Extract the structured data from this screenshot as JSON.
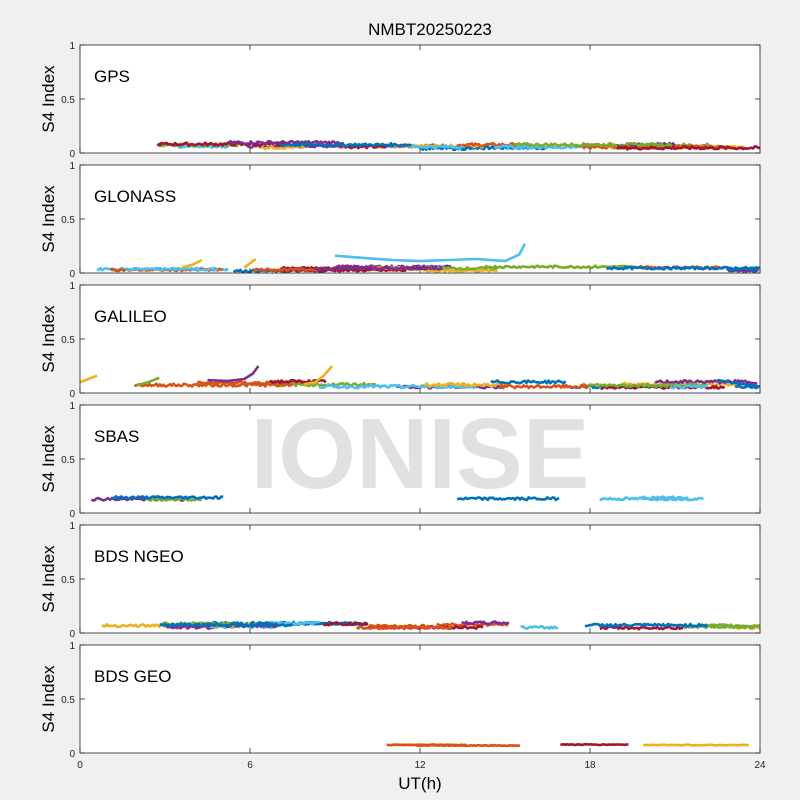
{
  "figure": {
    "title": "NMBT20250223",
    "xlabel": "UT(h)",
    "watermark": "IONISE",
    "background_color": "#f0f0f0",
    "axes_color": "#ffffff",
    "watermark_color": "#dcdcdc"
  },
  "chart_data": [
    {
      "type": "line",
      "panel_label": "GPS",
      "ylabel": "S4 Index",
      "xlim": [
        0,
        24
      ],
      "ylim": [
        0,
        1
      ],
      "xticks": [
        0,
        6,
        12,
        18,
        24
      ],
      "yticks": [
        0,
        0.5,
        1
      ],
      "show_xticklabels": false,
      "base": 0.07,
      "noise": 0.04,
      "tracks": 22,
      "spikes": [],
      "colors": [
        "#0072bd",
        "#d95319",
        "#edb120",
        "#7e2f8e",
        "#77ac30",
        "#4dbeee",
        "#a2142f"
      ]
    },
    {
      "type": "line",
      "panel_label": "GLONASS",
      "ylabel": "S4 Index",
      "xlim": [
        0,
        24
      ],
      "ylim": [
        0,
        1
      ],
      "xticks": [
        0,
        6,
        12,
        18,
        24
      ],
      "yticks": [
        0,
        0.5,
        1
      ],
      "show_xticklabels": false,
      "base": 0.04,
      "noise": 0.03,
      "tracks": 18,
      "spikes": [
        {
          "x": [
            9.0,
            10.0,
            11.0,
            12.0,
            13.0,
            14.0,
            15.0,
            15.5,
            15.7
          ],
          "y": [
            0.16,
            0.14,
            0.12,
            0.11,
            0.12,
            0.13,
            0.11,
            0.17,
            0.27
          ],
          "color": "#4dbeee"
        },
        {
          "x": [
            3.6,
            4.0,
            4.3
          ],
          "y": [
            0.05,
            0.08,
            0.12
          ],
          "color": "#edb120"
        },
        {
          "x": [
            5.8,
            6.0,
            6.2
          ],
          "y": [
            0.05,
            0.09,
            0.13
          ],
          "color": "#edb120"
        }
      ],
      "colors": [
        "#0072bd",
        "#d95319",
        "#edb120",
        "#7e2f8e",
        "#77ac30",
        "#4dbeee",
        "#a2142f"
      ]
    },
    {
      "type": "line",
      "panel_label": "GALILEO",
      "ylabel": "S4 Index",
      "xlim": [
        0,
        24
      ],
      "ylim": [
        0,
        1
      ],
      "xticks": [
        0,
        6,
        12,
        18,
        24
      ],
      "yticks": [
        0,
        0.5,
        1
      ],
      "show_xticklabels": false,
      "base": 0.08,
      "noise": 0.04,
      "tracks": 16,
      "spikes": [
        {
          "x": [
            4.5,
            5.2,
            5.8,
            6.1,
            6.3
          ],
          "y": [
            0.12,
            0.11,
            0.13,
            0.18,
            0.25
          ],
          "color": "#7e2f8e"
        },
        {
          "x": [
            7.9,
            8.3,
            8.6,
            8.9
          ],
          "y": [
            0.08,
            0.1,
            0.16,
            0.25
          ],
          "color": "#edb120"
        },
        {
          "x": [
            0.0,
            0.3,
            0.6
          ],
          "y": [
            0.1,
            0.13,
            0.16
          ],
          "color": "#edb120"
        },
        {
          "x": [
            2.0,
            2.4,
            2.8
          ],
          "y": [
            0.07,
            0.1,
            0.14
          ],
          "color": "#77ac30"
        },
        {
          "x": [
            22.5,
            23.2,
            24.0
          ],
          "y": [
            0.12,
            0.09,
            0.06
          ],
          "color": "#0072bd"
        }
      ],
      "colors": [
        "#0072bd",
        "#d95319",
        "#edb120",
        "#7e2f8e",
        "#77ac30",
        "#4dbeee",
        "#a2142f"
      ]
    },
    {
      "type": "line",
      "panel_label": "SBAS",
      "ylabel": "S4 Index",
      "xlim": [
        0,
        24
      ],
      "ylim": [
        0,
        1
      ],
      "xticks": [
        0,
        6,
        12,
        18,
        24
      ],
      "yticks": [
        0,
        0.5,
        1
      ],
      "show_xticklabels": false,
      "base": 0.14,
      "noise": 0.035,
      "tracks": 6,
      "spikes": [],
      "colors": [
        "#0072bd",
        "#7e2f8e",
        "#4dbeee",
        "#77ac30",
        "#0072bd",
        "#4dbeee"
      ]
    },
    {
      "type": "line",
      "panel_label": "BDS NGEO",
      "ylabel": "S4 Index",
      "xlim": [
        0,
        24
      ],
      "ylim": [
        0,
        1
      ],
      "xticks": [
        0,
        6,
        12,
        18,
        24
      ],
      "yticks": [
        0,
        0.5,
        1
      ],
      "show_xticklabels": false,
      "base": 0.07,
      "noise": 0.035,
      "tracks": 22,
      "spikes": [],
      "colors": [
        "#0072bd",
        "#d95319",
        "#edb120",
        "#7e2f8e",
        "#77ac30",
        "#4dbeee",
        "#a2142f"
      ]
    },
    {
      "type": "line",
      "panel_label": "BDS GEO",
      "ylabel": "S4 Index",
      "xlim": [
        0,
        24
      ],
      "ylim": [
        0,
        1
      ],
      "xticks": [
        0,
        6,
        12,
        18,
        24
      ],
      "yticks": [
        0,
        0.5,
        1
      ],
      "show_xticklabels": true,
      "base": 0.075,
      "noise": 0.01,
      "tracks": 5,
      "spikes": [],
      "colors": [
        "#d95319",
        "#edb120",
        "#edb120",
        "#d95319",
        "#a2142f"
      ]
    }
  ]
}
